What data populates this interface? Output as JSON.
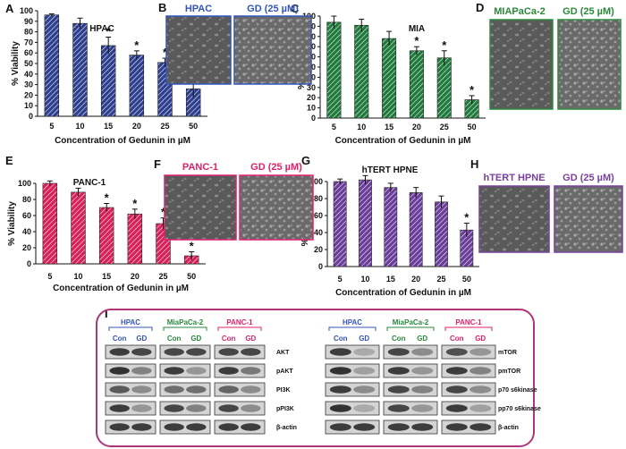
{
  "panel_letters": [
    "A",
    "B",
    "C",
    "D",
    "E",
    "F",
    "G",
    "H",
    "I"
  ],
  "colors": {
    "hpac": "#2e3f8f",
    "mia": "#1f7a3c",
    "panc": "#d8205a",
    "hpne": "#6a3d9a",
    "hpac_text": "#3355bb",
    "mia_text": "#2a8a3a",
    "panc_text": "#e0206a",
    "hpne_text": "#7a3fa0",
    "frame": "#b0347a"
  },
  "chart_data": [
    {
      "id": "A",
      "type": "bar",
      "title": "HPAC",
      "categories": [
        "5",
        "10",
        "15",
        "20",
        "25",
        "50"
      ],
      "values": [
        96,
        88,
        67,
        58,
        51,
        26
      ],
      "errors": [
        1,
        5,
        8,
        4,
        4,
        8
      ],
      "significant": [
        false,
        false,
        true,
        true,
        true,
        true
      ],
      "ylabel": "% Viability",
      "xlabel": "Concentration of Gedunin in µM",
      "ylim": [
        0,
        100
      ],
      "yticks": [
        0,
        10,
        20,
        30,
        40,
        50,
        60,
        70,
        80,
        90,
        100
      ]
    },
    {
      "id": "C",
      "type": "bar",
      "title": "MIA",
      "categories": [
        "5",
        "10",
        "15",
        "20",
        "25",
        "50"
      ],
      "values": [
        94,
        91,
        78,
        66,
        59,
        18
      ],
      "errors": [
        6,
        6,
        7,
        4,
        7,
        4
      ],
      "significant": [
        false,
        false,
        false,
        true,
        true,
        true
      ],
      "ylabel": "% Viability",
      "xlabel": "Concentration of Gedunin in µM",
      "ylim": [
        0,
        100
      ],
      "yticks": [
        0,
        10,
        20,
        30,
        40,
        50,
        60,
        70,
        80,
        90,
        100
      ]
    },
    {
      "id": "E",
      "type": "bar",
      "title": "PANC-1",
      "categories": [
        "5",
        "10",
        "15",
        "20",
        "25",
        "50"
      ],
      "values": [
        100,
        89,
        70,
        62,
        50,
        10
      ],
      "errors": [
        3,
        5,
        5,
        6,
        7,
        5
      ],
      "significant": [
        false,
        false,
        true,
        true,
        true,
        true
      ],
      "ylabel": "% Viability",
      "xlabel": "Concentration of Gedunin in µM",
      "ylim": [
        0,
        100
      ],
      "yticks": [
        0,
        20,
        40,
        60,
        80,
        100
      ]
    },
    {
      "id": "G",
      "type": "bar",
      "title": "hTERT HPNE",
      "categories": [
        "5",
        "10",
        "15",
        "20",
        "25",
        "50"
      ],
      "values": [
        100,
        102,
        93,
        87,
        76,
        43
      ],
      "errors": [
        3,
        5,
        5,
        6,
        7,
        8
      ],
      "significant": [
        false,
        false,
        false,
        false,
        false,
        true
      ],
      "ylabel": "% Viability",
      "xlabel": "Concentration of Gedunin in µM",
      "ylim": [
        0,
        100
      ],
      "yticks": [
        0,
        20,
        40,
        60,
        80,
        100
      ]
    }
  ],
  "micrographs": [
    {
      "id": "B",
      "left": "HPAC",
      "right": "GD (25 µM)"
    },
    {
      "id": "D",
      "left": "MIAPaCa-2",
      "right": "GD (25 µM)"
    },
    {
      "id": "F",
      "left": "PANC-1",
      "right": "GD (25 µM)"
    },
    {
      "id": "H",
      "left": "hTERT HPNE",
      "right": "GD (25 µM)"
    }
  ],
  "western": {
    "cell_lines": [
      "HPAC",
      "MiaPaCa-2",
      "PANC-1"
    ],
    "lane_labels": [
      "Con",
      "GD"
    ],
    "left_proteins": [
      "AKT",
      "pAKT",
      "PI3K",
      "pPI3K",
      "β-actin"
    ],
    "right_proteins": [
      "mTOR",
      "pmTOR",
      "p70 s6kinase",
      "pp70 s6kinase",
      "β-actin"
    ],
    "left_intensity": [
      [
        [
          0.85,
          0.8
        ],
        [
          0.8,
          0.8
        ],
        [
          0.8,
          0.8
        ]
      ],
      [
        [
          0.9,
          0.5
        ],
        [
          0.85,
          0.4
        ],
        [
          0.85,
          0.55
        ]
      ],
      [
        [
          0.7,
          0.45
        ],
        [
          0.6,
          0.6
        ],
        [
          0.65,
          0.45
        ]
      ],
      [
        [
          0.85,
          0.4
        ],
        [
          0.8,
          0.5
        ],
        [
          0.8,
          0.45
        ]
      ],
      [
        [
          0.85,
          0.85
        ],
        [
          0.85,
          0.85
        ],
        [
          0.85,
          0.85
        ]
      ]
    ],
    "right_intensity": [
      [
        [
          0.85,
          0.3
        ],
        [
          0.8,
          0.45
        ],
        [
          0.75,
          0.4
        ]
      ],
      [
        [
          0.9,
          0.35
        ],
        [
          0.85,
          0.4
        ],
        [
          0.85,
          0.5
        ]
      ],
      [
        [
          0.85,
          0.45
        ],
        [
          0.8,
          0.5
        ],
        [
          0.8,
          0.45
        ]
      ],
      [
        [
          0.9,
          0.3
        ],
        [
          0.8,
          0.4
        ],
        [
          0.85,
          0.35
        ]
      ],
      [
        [
          0.85,
          0.85
        ],
        [
          0.85,
          0.85
        ],
        [
          0.85,
          0.85
        ]
      ]
    ]
  }
}
